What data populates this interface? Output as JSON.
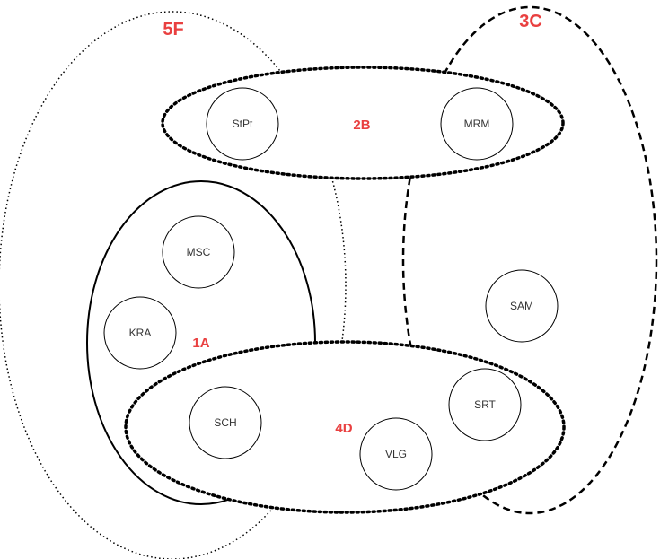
{
  "colors": {
    "group_label": "#e94040",
    "stroke": "#000000",
    "node_text": "#333333"
  },
  "groups": {
    "g5F": {
      "label": "5F",
      "style": "dotted-thin"
    },
    "g3C": {
      "label": "3C",
      "style": "dashed"
    },
    "g2B": {
      "label": "2B",
      "style": "dotted-thick"
    },
    "g1A": {
      "label": "1A",
      "style": "solid"
    },
    "g4D": {
      "label": "4D",
      "style": "dotted-thick"
    }
  },
  "nodes": {
    "stpt": "StPt",
    "mrm": "MRM",
    "msc": "MSC",
    "kra": "KRA",
    "sam": "SAM",
    "srt": "SRT",
    "sch": "SCH",
    "vlg": "VLG"
  }
}
